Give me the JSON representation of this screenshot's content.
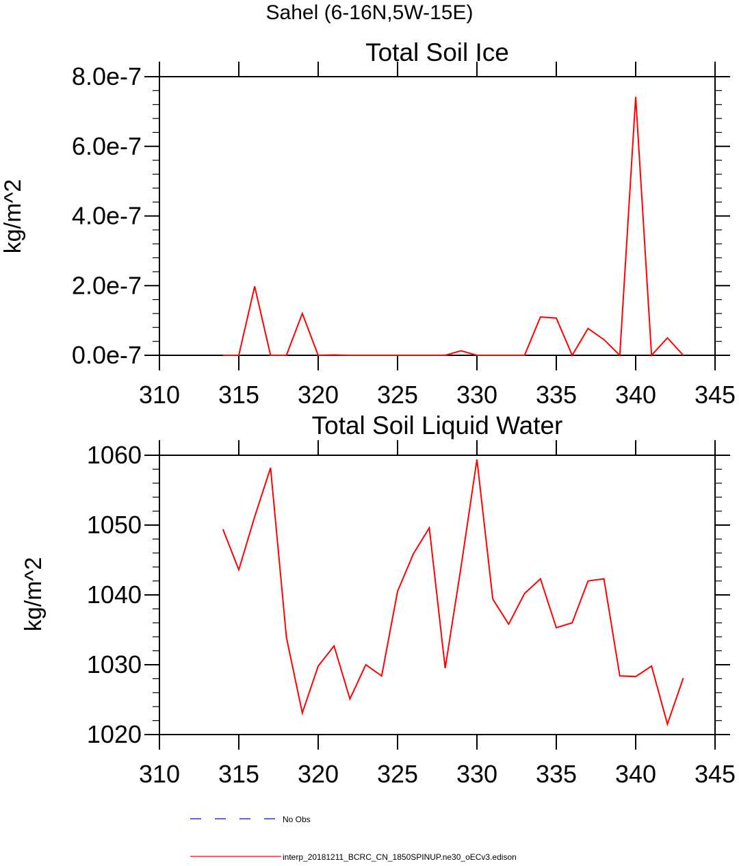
{
  "main_title": "Sahel (6-16N,5W-15E)",
  "colors": {
    "series": "#ff0000",
    "obs": "#0000ff",
    "axis": "#000000"
  },
  "legend": {
    "obs_label": "No Obs",
    "model_label": "interp_20181211_BCRC_CN_1850SPINUP.ne30_oECv3.edison"
  },
  "chart_data": [
    {
      "type": "line",
      "title": "Total Soil Ice",
      "xlabel": "",
      "ylabel": "kg/m^2",
      "xlim": [
        310,
        345
      ],
      "ylim": [
        0,
        8e-07
      ],
      "x_ticks": [
        310,
        315,
        320,
        325,
        330,
        335,
        340,
        345
      ],
      "x_tick_labels": [
        "310",
        "315",
        "320",
        "325",
        "330",
        "335",
        "340",
        "345"
      ],
      "y_ticks": [
        0,
        2e-07,
        4e-07,
        6e-07,
        8e-07
      ],
      "y_tick_labels": [
        "0.0e-7",
        "2.0e-7",
        "4.0e-7",
        "6.0e-7",
        "8.0e-7"
      ],
      "series": [
        {
          "name": "interp_20181211_BCRC_CN_1850SPINUP.ne30_oECv3.edison",
          "x": [
            314,
            315,
            316,
            317,
            318,
            319,
            320,
            321,
            322,
            323,
            324,
            325,
            326,
            327,
            328,
            329,
            330,
            331,
            332,
            333,
            334,
            335,
            336,
            337,
            338,
            339,
            340,
            341,
            342,
            343
          ],
          "values": [
            0,
            0,
            1.98e-07,
            0,
            0,
            1.2e-07,
            0,
            1e-09,
            0,
            0,
            0,
            0,
            0,
            0,
            0,
            1.3e-08,
            0,
            0,
            0,
            0,
            1.1e-07,
            1.07e-07,
            0,
            7.7e-08,
            4.5e-08,
            0,
            7.42e-07,
            0,
            5e-08,
            0
          ]
        }
      ]
    },
    {
      "type": "line",
      "title": "Total Soil Liquid Water",
      "xlabel": "",
      "ylabel": "kg/m^2",
      "xlim": [
        310,
        345
      ],
      "ylim": [
        1020,
        1060
      ],
      "x_ticks": [
        310,
        315,
        320,
        325,
        330,
        335,
        340,
        345
      ],
      "x_tick_labels": [
        "310",
        "315",
        "320",
        "325",
        "330",
        "335",
        "340",
        "345"
      ],
      "y_ticks": [
        1020,
        1030,
        1040,
        1050,
        1060
      ],
      "y_tick_labels": [
        "1020",
        "1030",
        "1040",
        "1050",
        "1060"
      ],
      "series": [
        {
          "name": "interp_20181211_BCRC_CN_1850SPINUP.ne30_oECv3.edison",
          "x": [
            314,
            315,
            316,
            317,
            318,
            319,
            320,
            321,
            322,
            323,
            324,
            325,
            326,
            327,
            328,
            329,
            330,
            331,
            332,
            333,
            334,
            335,
            336,
            337,
            338,
            339,
            340,
            341,
            342,
            343
          ],
          "values": [
            1049.4,
            1043.6,
            1051.2,
            1058.2,
            1033.9,
            1023.1,
            1029.8,
            1032.7,
            1025.1,
            1030.0,
            1028.4,
            1040.5,
            1045.9,
            1049.6,
            1029.5,
            1044.0,
            1059.4,
            1039.4,
            1035.8,
            1040.2,
            1042.3,
            1035.3,
            1036.0,
            1042.0,
            1042.3,
            1028.4,
            1028.3,
            1029.8,
            1021.5,
            1028.1
          ]
        }
      ]
    }
  ]
}
